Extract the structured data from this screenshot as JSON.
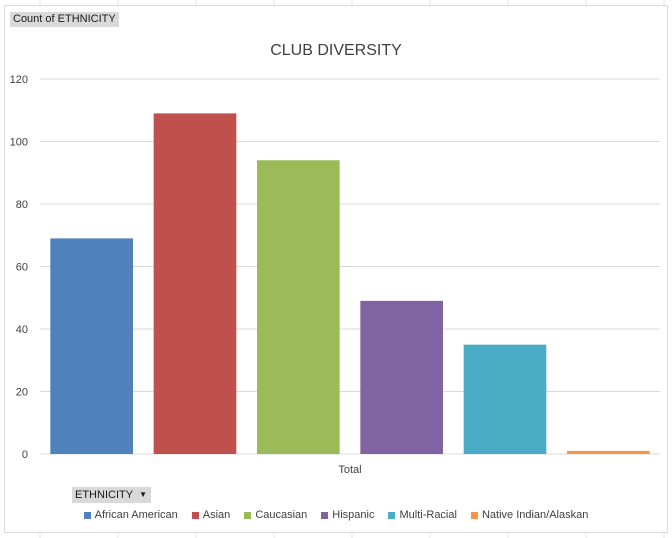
{
  "pivot": {
    "values_field": "Count of ETHNICITY",
    "axis_field": "ETHNICITY"
  },
  "chart_data": {
    "type": "bar",
    "title": "CLUB DIVERSITY",
    "categories": [
      "Total"
    ],
    "series": [
      {
        "name": "African American",
        "values": [
          69
        ],
        "color": "#4f81bd"
      },
      {
        "name": "Asian",
        "values": [
          109
        ],
        "color": "#c0504d"
      },
      {
        "name": "Caucasian",
        "values": [
          94
        ],
        "color": "#9bbb59"
      },
      {
        "name": "Hispanic",
        "values": [
          49
        ],
        "color": "#8064a2"
      },
      {
        "name": "Multi-Racial",
        "values": [
          35
        ],
        "color": "#4bacc6"
      },
      {
        "name": "Native Indian/Alaskan",
        "values": [
          1
        ],
        "color": "#f79646"
      }
    ],
    "ylim": [
      0,
      120
    ],
    "yticks": [
      0,
      20,
      40,
      60,
      80,
      100,
      120
    ],
    "grid": true,
    "legend_position": "bottom"
  }
}
